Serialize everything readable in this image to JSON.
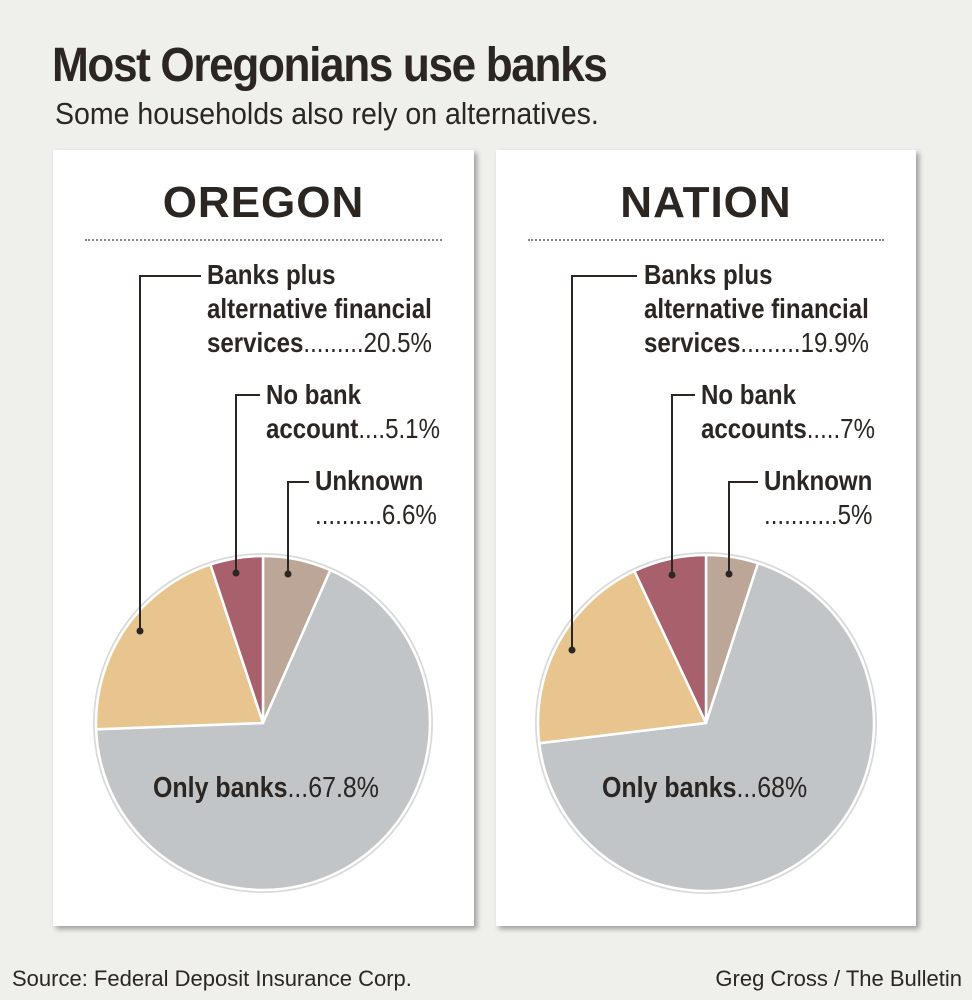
{
  "title": "Most Oregonians use banks",
  "subtitle": "Some households also rely on alternatives.",
  "source": "Source: Federal Deposit Insurance Corp.",
  "credit": "Greg Cross / The Bulletin",
  "colors": {
    "only_banks": "#c2c5c8",
    "banks_plus_alternative": "#e8c48f",
    "no_bank_account": "#a8606c",
    "unknown": "#bca697",
    "rim": "#d9d9d9"
  },
  "chart_data": [
    {
      "type": "pie",
      "title": "OREGON",
      "slices": [
        {
          "key": "unknown",
          "value": 6.6
        },
        {
          "key": "only_banks",
          "value": 67.8
        },
        {
          "key": "banks_plus_alternative",
          "value": 20.5
        },
        {
          "key": "no_bank_account",
          "value": 5.1
        }
      ],
      "labels": {
        "banks_plus_1": "Banks plus",
        "banks_plus_2": "alternative financial",
        "banks_plus_3": "services",
        "banks_plus_dots": ".........",
        "banks_plus_val": "20.5%",
        "no_bank_1": "No bank",
        "no_bank_2": "account",
        "no_bank_dots": "....",
        "no_bank_val": "5.1%",
        "unknown_1": "Unknown",
        "unknown_dots": "..........",
        "unknown_val": "6.6%",
        "only_name": "Only banks",
        "only_dots": "...",
        "only_val": "67.8%"
      }
    },
    {
      "type": "pie",
      "title": "NATION",
      "slices": [
        {
          "key": "unknown",
          "value": 5
        },
        {
          "key": "only_banks",
          "value": 68
        },
        {
          "key": "banks_plus_alternative",
          "value": 19.9
        },
        {
          "key": "no_bank_account",
          "value": 7
        }
      ],
      "labels": {
        "banks_plus_1": "Banks plus",
        "banks_plus_2": "alternative financial",
        "banks_plus_3": "services",
        "banks_plus_dots": ".........",
        "banks_plus_val": "19.9%",
        "no_bank_1": "No bank",
        "no_bank_2": "accounts",
        "no_bank_dots": ".....",
        "no_bank_val": "7%",
        "unknown_1": "Unknown",
        "unknown_dots": "...........",
        "unknown_val": "5%",
        "only_name": "Only banks",
        "only_dots": "...",
        "only_val": "68%"
      }
    }
  ]
}
